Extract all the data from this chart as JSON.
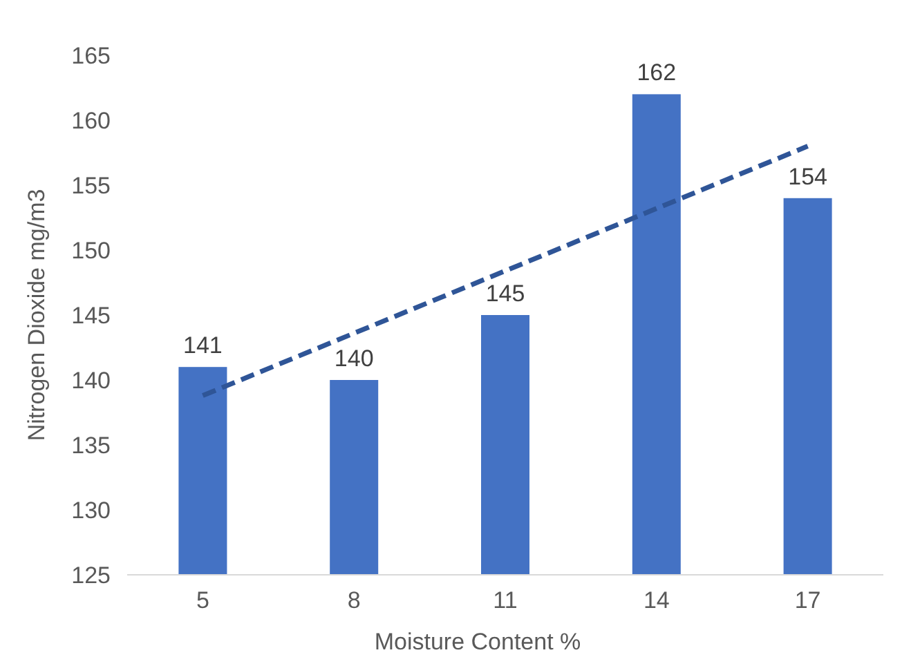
{
  "chart_data": {
    "type": "bar",
    "xlabel": "Moisture Content  %",
    "ylabel": "Nitrogen Dioxide  mg/m3",
    "categories": [
      "5",
      "8",
      "11",
      "14",
      "17"
    ],
    "series": [
      {
        "color": "#4472c4",
        "values": [
          141,
          140,
          145,
          162,
          154
        ],
        "value_labels": [
          "141",
          "140",
          "145",
          "162",
          "154"
        ]
      },
      {
        "type": "line",
        "color": "#2f5597",
        "line_style": "dashed",
        "values": [
          138.8,
          143.6,
          148.4,
          153.2,
          158.0
        ]
      }
    ],
    "ylim": [
      125,
      165
    ],
    "yticks": [
      125,
      130,
      135,
      140,
      145,
      150,
      155,
      160,
      165
    ],
    "grid": false
  }
}
